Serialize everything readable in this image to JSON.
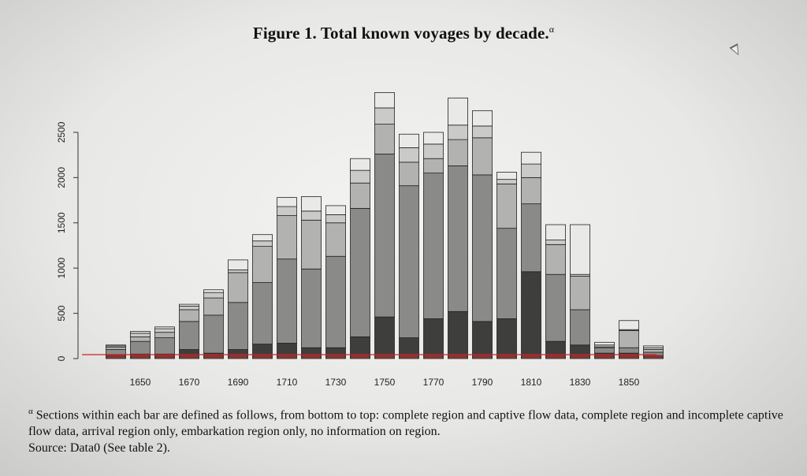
{
  "figure": {
    "title": "Figure 1. Total known voyages by decade.",
    "title_mark": "α",
    "footnote_mark": "α",
    "footnote_text": "Sections within each bar are defined as follows, from bottom to top: complete region and captive flow data, complete region and incomplete captive flow data, arrival region only, embarkation region only, no information on region.",
    "source": "Source: Data0 (See table 2)."
  },
  "chart_data": {
    "type": "bar",
    "stacked": true,
    "ylim": [
      0,
      2900
    ],
    "yticks": [
      0,
      500,
      1000,
      1500,
      2000,
      2500
    ],
    "xtick_labels": [
      "1650",
      "1670",
      "1690",
      "1710",
      "1730",
      "1750",
      "1770",
      "1790",
      "1810",
      "1830",
      "1850"
    ],
    "categories": [
      "1640",
      "1650",
      "1660",
      "1670",
      "1680",
      "1690",
      "1700",
      "1710",
      "1720",
      "1730",
      "1740",
      "1750",
      "1760",
      "1770",
      "1780",
      "1790",
      "1800",
      "1810",
      "1820",
      "1830",
      "1840",
      "1850",
      "1860"
    ],
    "series": [
      {
        "values": [
          40,
          50,
          50,
          100,
          60,
          100,
          160,
          170,
          120,
          120,
          240,
          460,
          230,
          440,
          520,
          410,
          440,
          960,
          190,
          150,
          60,
          60,
          30
        ]
      },
      {
        "values": [
          60,
          140,
          180,
          310,
          420,
          520,
          680,
          930,
          870,
          1010,
          1420,
          1800,
          1680,
          1610,
          1610,
          1620,
          1000,
          750,
          740,
          390,
          60,
          60,
          40
        ]
      },
      {
        "values": [
          25,
          50,
          60,
          130,
          190,
          330,
          400,
          480,
          540,
          370,
          280,
          330,
          260,
          160,
          290,
          410,
          490,
          290,
          330,
          370,
          10,
          190,
          30
        ]
      },
      {
        "values": [
          15,
          40,
          40,
          40,
          60,
          30,
          60,
          100,
          100,
          90,
          140,
          180,
          160,
          160,
          160,
          130,
          50,
          150,
          50,
          20,
          20,
          10,
          20
        ]
      },
      {
        "values": [
          10,
          20,
          20,
          20,
          30,
          110,
          70,
          100,
          160,
          100,
          130,
          170,
          150,
          130,
          300,
          170,
          80,
          130,
          170,
          550,
          30,
          100,
          20
        ]
      }
    ],
    "colors": [
      "#3e3e3c",
      "#8a8a88",
      "#b2b2b0",
      "#cacac8",
      "#e9e9e7"
    ],
    "baseline_color": "#cc2222"
  }
}
